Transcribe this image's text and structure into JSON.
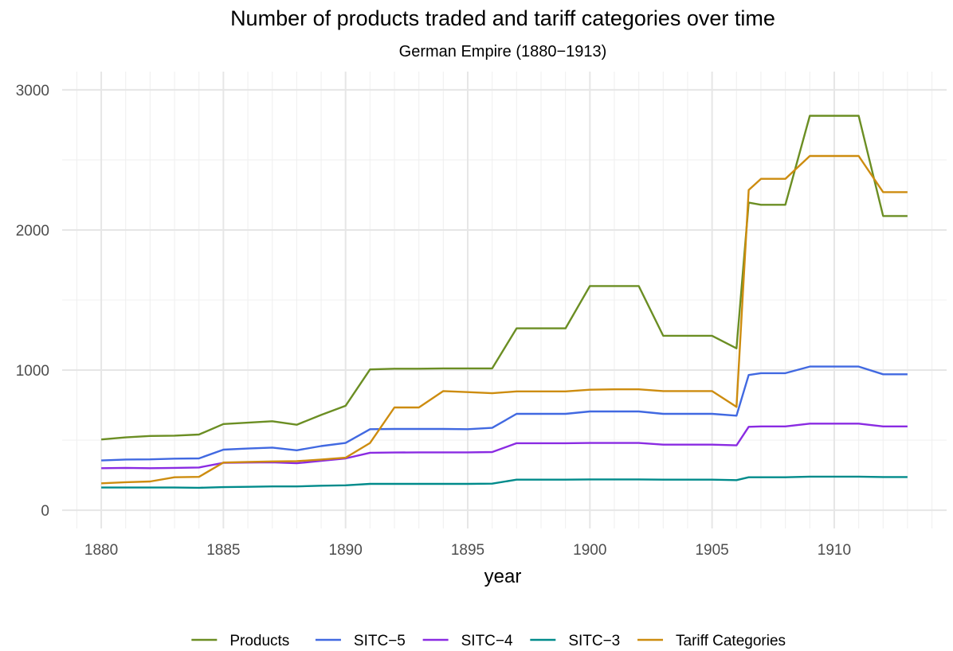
{
  "chart_data": {
    "type": "line",
    "title": "Number of products traded and tariff categories over time",
    "subtitle": "German Empire (1880−1913)",
    "xlabel": "year",
    "ylabel": "",
    "xlim": [
      1878.4,
      1914.6
    ],
    "ylim": [
      -130,
      3130
    ],
    "x_ticks": [
      1880,
      1885,
      1890,
      1895,
      1900,
      1905,
      1910
    ],
    "y_ticks": [
      0,
      1000,
      2000,
      3000
    ],
    "grid": true,
    "legend_position": "bottom",
    "series": [
      {
        "name": "Products",
        "color": "#6b8e23",
        "points": [
          [
            1880,
            505
          ],
          [
            1881,
            520
          ],
          [
            1882,
            530
          ],
          [
            1883,
            532
          ],
          [
            1884,
            540
          ],
          [
            1885,
            615
          ],
          [
            1886,
            625
          ],
          [
            1887,
            635
          ],
          [
            1888,
            610
          ],
          [
            1889,
            680
          ],
          [
            1890,
            745
          ],
          [
            1891,
            1005
          ],
          [
            1892,
            1010
          ],
          [
            1893,
            1010
          ],
          [
            1894,
            1012
          ],
          [
            1895,
            1012
          ],
          [
            1896,
            1012
          ],
          [
            1897,
            1298
          ],
          [
            1898,
            1298
          ],
          [
            1899,
            1298
          ],
          [
            1900,
            1600
          ],
          [
            1901,
            1600
          ],
          [
            1902,
            1600
          ],
          [
            1903,
            1245
          ],
          [
            1904,
            1245
          ],
          [
            1905,
            1245
          ],
          [
            1906,
            1155
          ],
          [
            1906.5,
            2195
          ],
          [
            1907,
            2180
          ],
          [
            1908,
            2180
          ],
          [
            1909,
            2815
          ],
          [
            1910,
            2815
          ],
          [
            1911,
            2815
          ],
          [
            1912,
            2100
          ],
          [
            1913,
            2100
          ]
        ]
      },
      {
        "name": "SITC−5",
        "color": "#4169e1",
        "points": [
          [
            1880,
            355
          ],
          [
            1881,
            362
          ],
          [
            1882,
            363
          ],
          [
            1883,
            368
          ],
          [
            1884,
            370
          ],
          [
            1885,
            432
          ],
          [
            1886,
            440
          ],
          [
            1887,
            447
          ],
          [
            1888,
            428
          ],
          [
            1889,
            458
          ],
          [
            1890,
            480
          ],
          [
            1891,
            578
          ],
          [
            1892,
            580
          ],
          [
            1893,
            580
          ],
          [
            1894,
            580
          ],
          [
            1895,
            578
          ],
          [
            1896,
            588
          ],
          [
            1897,
            688
          ],
          [
            1898,
            688
          ],
          [
            1899,
            688
          ],
          [
            1900,
            705
          ],
          [
            1901,
            705
          ],
          [
            1902,
            705
          ],
          [
            1903,
            688
          ],
          [
            1904,
            688
          ],
          [
            1905,
            688
          ],
          [
            1906,
            675
          ],
          [
            1906.5,
            965
          ],
          [
            1907,
            978
          ],
          [
            1908,
            978
          ],
          [
            1909,
            1025
          ],
          [
            1910,
            1025
          ],
          [
            1911,
            1025
          ],
          [
            1912,
            970
          ],
          [
            1913,
            970
          ]
        ]
      },
      {
        "name": "SITC−4",
        "color": "#8a2be2",
        "points": [
          [
            1880,
            300
          ],
          [
            1881,
            302
          ],
          [
            1882,
            300
          ],
          [
            1883,
            302
          ],
          [
            1884,
            305
          ],
          [
            1885,
            338
          ],
          [
            1886,
            340
          ],
          [
            1887,
            342
          ],
          [
            1888,
            335
          ],
          [
            1889,
            352
          ],
          [
            1890,
            370
          ],
          [
            1891,
            410
          ],
          [
            1892,
            412
          ],
          [
            1893,
            413
          ],
          [
            1894,
            413
          ],
          [
            1895,
            413
          ],
          [
            1896,
            415
          ],
          [
            1897,
            478
          ],
          [
            1898,
            478
          ],
          [
            1899,
            478
          ],
          [
            1900,
            480
          ],
          [
            1901,
            480
          ],
          [
            1902,
            480
          ],
          [
            1903,
            468
          ],
          [
            1904,
            468
          ],
          [
            1905,
            468
          ],
          [
            1906,
            463
          ],
          [
            1906.5,
            595
          ],
          [
            1907,
            598
          ],
          [
            1908,
            598
          ],
          [
            1909,
            618
          ],
          [
            1910,
            618
          ],
          [
            1911,
            618
          ],
          [
            1912,
            598
          ],
          [
            1913,
            598
          ]
        ]
      },
      {
        "name": "SITC−3",
        "color": "#008b8b",
        "points": [
          [
            1880,
            162
          ],
          [
            1881,
            162
          ],
          [
            1882,
            162
          ],
          [
            1883,
            162
          ],
          [
            1884,
            160
          ],
          [
            1885,
            165
          ],
          [
            1886,
            167
          ],
          [
            1887,
            170
          ],
          [
            1888,
            170
          ],
          [
            1889,
            175
          ],
          [
            1890,
            178
          ],
          [
            1891,
            188
          ],
          [
            1892,
            188
          ],
          [
            1893,
            188
          ],
          [
            1894,
            188
          ],
          [
            1895,
            188
          ],
          [
            1896,
            190
          ],
          [
            1897,
            218
          ],
          [
            1898,
            218
          ],
          [
            1899,
            218
          ],
          [
            1900,
            220
          ],
          [
            1901,
            220
          ],
          [
            1902,
            220
          ],
          [
            1903,
            218
          ],
          [
            1904,
            218
          ],
          [
            1905,
            218
          ],
          [
            1906,
            215
          ],
          [
            1906.5,
            235
          ],
          [
            1907,
            235
          ],
          [
            1908,
            235
          ],
          [
            1909,
            240
          ],
          [
            1910,
            240
          ],
          [
            1911,
            240
          ],
          [
            1912,
            237
          ],
          [
            1913,
            237
          ]
        ]
      },
      {
        "name": "Tariff Categories",
        "color": "#cd8c0f",
        "points": [
          [
            1880,
            192
          ],
          [
            1881,
            200
          ],
          [
            1882,
            205
          ],
          [
            1883,
            235
          ],
          [
            1884,
            238
          ],
          [
            1885,
            340
          ],
          [
            1886,
            345
          ],
          [
            1887,
            348
          ],
          [
            1888,
            350
          ],
          [
            1889,
            362
          ],
          [
            1890,
            375
          ],
          [
            1891,
            480
          ],
          [
            1892,
            733
          ],
          [
            1893,
            733
          ],
          [
            1894,
            850
          ],
          [
            1895,
            843
          ],
          [
            1896,
            835
          ],
          [
            1897,
            848
          ],
          [
            1898,
            848
          ],
          [
            1899,
            848
          ],
          [
            1900,
            860
          ],
          [
            1901,
            863
          ],
          [
            1902,
            863
          ],
          [
            1903,
            850
          ],
          [
            1904,
            850
          ],
          [
            1905,
            850
          ],
          [
            1906,
            738
          ],
          [
            1906.5,
            2285
          ],
          [
            1907,
            2365
          ],
          [
            1908,
            2365
          ],
          [
            1909,
            2528
          ],
          [
            1910,
            2528
          ],
          [
            1911,
            2528
          ],
          [
            1912,
            2270
          ],
          [
            1913,
            2270
          ]
        ]
      }
    ]
  }
}
